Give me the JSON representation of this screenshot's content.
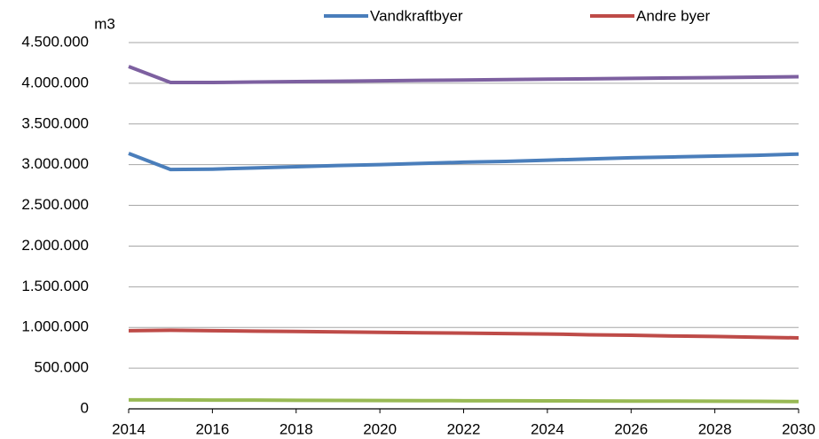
{
  "chart_data": {
    "type": "line",
    "y_label": "m3",
    "x": [
      2014,
      2015,
      2016,
      2017,
      2018,
      2019,
      2020,
      2021,
      2022,
      2023,
      2024,
      2025,
      2026,
      2027,
      2028,
      2029,
      2030
    ],
    "xlim": [
      2014,
      2030
    ],
    "xticks": [
      2014,
      2016,
      2018,
      2020,
      2022,
      2024,
      2026,
      2028,
      2030
    ],
    "ylim": [
      0,
      4500000
    ],
    "yticks": [
      0,
      {
        "value": 500000,
        "label": "500.000"
      },
      {
        "value": 1000000,
        "label": "1.000.000"
      },
      {
        "value": 1500000,
        "label": "1.500.000"
      },
      {
        "value": 2000000,
        "label": "2.000.000"
      },
      {
        "value": 2500000,
        "label": "2.500.000"
      },
      {
        "value": 3000000,
        "label": "3.000.000"
      },
      {
        "value": 3500000,
        "label": "3.500.000"
      },
      {
        "value": 4000000,
        "label": "4.000.000"
      },
      {
        "value": 4500000,
        "label": "4.500.000"
      }
    ],
    "grid": true,
    "legend": "top",
    "series": [
      {
        "name": "Vandkraftbyer",
        "color": "#4a7ebb",
        "values": [
          3138000,
          2940000,
          2945000,
          2960000,
          2975000,
          2990000,
          3000000,
          3015000,
          3030000,
          3040000,
          3055000,
          3070000,
          3085000,
          3095000,
          3105000,
          3115000,
          3130000
        ]
      },
      {
        "name": "Andre byer",
        "color": "#be4b48",
        "values": [
          960000,
          965000,
          960000,
          955000,
          950000,
          945000,
          940000,
          935000,
          930000,
          925000,
          920000,
          910000,
          905000,
          895000,
          890000,
          880000,
          872000
        ]
      },
      {
        "color": "#7d60a0",
        "values": [
          4206000,
          4010000,
          4010000,
          4015000,
          4020000,
          4025000,
          4030000,
          4035000,
          4040000,
          4045000,
          4050000,
          4055000,
          4060000,
          4065000,
          4070000,
          4075000,
          4080000
        ]
      },
      {
        "color": "#98b954",
        "values": [
          110000,
          110000,
          108000,
          107000,
          105000,
          104000,
          102000,
          101000,
          100000,
          99000,
          98000,
          97000,
          96000,
          95000,
          94000,
          92000,
          90000
        ]
      }
    ]
  }
}
